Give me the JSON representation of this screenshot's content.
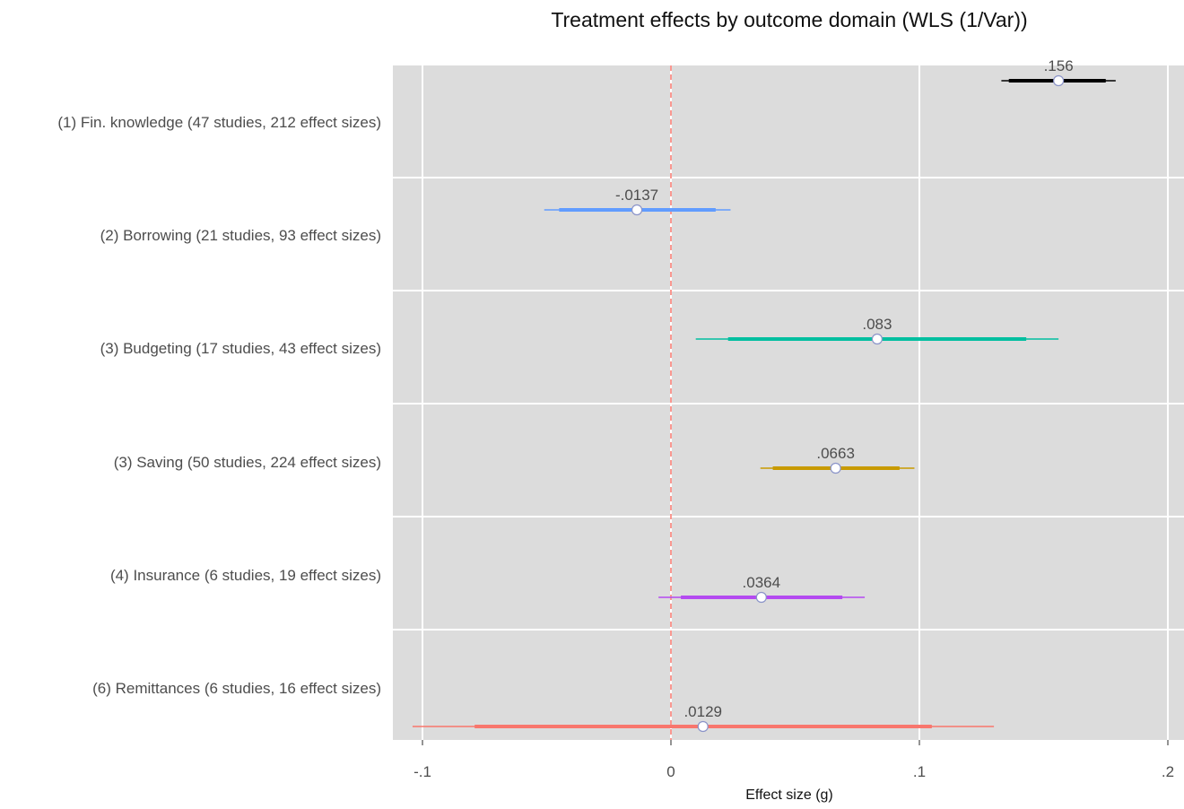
{
  "chart_data": {
    "type": "forest",
    "title": "Treatment effects by outcome domain (WLS (1/Var))",
    "xlabel": "Effect size (g)",
    "ylabel": "",
    "xlim": [
      -0.112,
      0.207
    ],
    "x_ticks": [
      -0.1,
      0,
      0.1,
      0.2
    ],
    "x_tick_labels": [
      "-.1",
      "0",
      ".1",
      ".2"
    ],
    "grid": true,
    "reference_line": {
      "x": 0,
      "style": "dashed",
      "color": "#f8766d"
    },
    "rows": [
      {
        "label": "(1) Fin. knowledge (47 studies, 212 effect sizes)",
        "estimate": 0.156,
        "value_label": ".156",
        "ci_inner": [
          0.136,
          0.175
        ],
        "ci_outer": [
          0.133,
          0.179
        ],
        "color": "#000000"
      },
      {
        "label": "(2) Borrowing (21 studies, 93 effect sizes)",
        "estimate": -0.0137,
        "value_label": "-.0137",
        "ci_inner": [
          -0.045,
          0.018
        ],
        "ci_outer": [
          -0.051,
          0.024
        ],
        "color": "#619cff"
      },
      {
        "label": "(3) Budgeting (17 studies, 43 effect sizes)",
        "estimate": 0.083,
        "value_label": ".083",
        "ci_inner": [
          0.023,
          0.143
        ],
        "ci_outer": [
          0.01,
          0.156
        ],
        "color": "#00bfa0"
      },
      {
        "label": "(3) Saving (50 studies, 224 effect sizes)",
        "estimate": 0.0663,
        "value_label": ".0663",
        "ci_inner": [
          0.041,
          0.092
        ],
        "ci_outer": [
          0.036,
          0.098
        ],
        "color": "#c89a00"
      },
      {
        "label": "(4) Insurance (6 studies, 19 effect sizes)",
        "estimate": 0.0364,
        "value_label": ".0364",
        "ci_inner": [
          0.004,
          0.069
        ],
        "ci_outer": [
          -0.005,
          0.078
        ],
        "color": "#b44af0"
      },
      {
        "label": "(6) Remittances (6 studies, 16 effect sizes)",
        "estimate": 0.0129,
        "value_label": ".0129",
        "ci_inner": [
          -0.079,
          0.105
        ],
        "ci_outer": [
          -0.104,
          0.13
        ],
        "color": "#f8766d"
      }
    ]
  }
}
